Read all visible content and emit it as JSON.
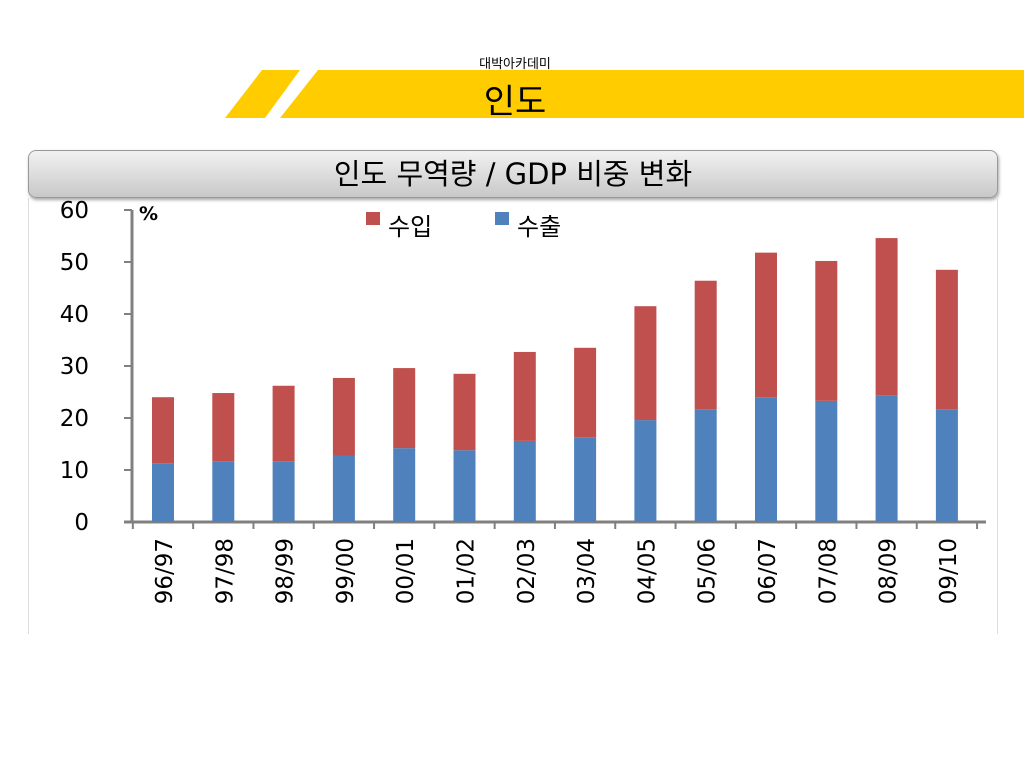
{
  "header": {
    "brand": "대박아카데미",
    "country": "인도"
  },
  "slide_title": "인도 무역량 / GDP 비중 변화",
  "colors": {
    "band": "#FFCC00",
    "imports": "#C0504D",
    "exports": "#4F81BD"
  },
  "chart_data": {
    "type": "bar",
    "stacked": true,
    "title": "인도 무역량 / GDP 비중 변화",
    "ylabel": "%",
    "xlabel": "",
    "ylim": [
      0,
      60
    ],
    "yticks": [
      0,
      10,
      20,
      30,
      40,
      50,
      60
    ],
    "legend": "top",
    "categories": [
      "96/97",
      "97/98",
      "98/99",
      "99/00",
      "00/01",
      "01/02",
      "02/03",
      "03/04",
      "04/05",
      "05/06",
      "06/07",
      "07/08",
      "08/09",
      "09/10"
    ],
    "series": [
      {
        "name": "수출",
        "values": [
          11.3,
          11.7,
          11.7,
          12.7,
          14.2,
          13.8,
          15.6,
          16.3,
          19.6,
          21.7,
          24.0,
          23.3,
          24.4,
          21.7
        ]
      },
      {
        "name": "수입",
        "values": [
          12.7,
          13.1,
          14.5,
          15.0,
          15.4,
          14.7,
          17.1,
          17.2,
          21.9,
          24.7,
          27.8,
          26.9,
          30.2,
          26.8
        ]
      }
    ]
  }
}
